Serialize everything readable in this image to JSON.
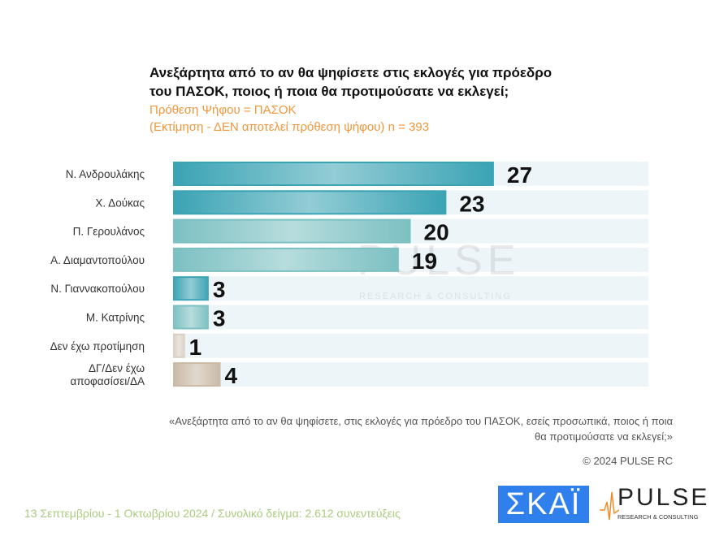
{
  "header": {
    "title": "Ανεξάρτητα από το αν θα ψηφίσετε στις εκλογές για πρόεδρο του ΠΑΣΟΚ, ποιος ή ποια θα προτιμούσατε να εκλεγεί;",
    "subtitle1": "Πρόθεση Ψήφου = ΠΑΣΟΚ",
    "subtitle2": "(Εκτίμηση - ΔΕΝ αποτελεί πρόθεση ψήφου)   n = 393"
  },
  "chart_data": {
    "type": "bar",
    "orientation": "horizontal",
    "categories": [
      "Ν. Ανδρουλάκης",
      "Χ. Δούκας",
      "Π. Γερουλάνος",
      "Α. Διαμαντοπούλου",
      "Ν. Γιαννακοπούλου",
      "Μ. Κατρίνης",
      "Δεν έχω προτίμηση",
      "ΔΓ/Δεν έχω αποφασίσει/ΔΑ"
    ],
    "values": [
      27,
      23,
      20,
      19,
      3,
      3,
      1,
      4
    ],
    "xlim": [
      0,
      40
    ],
    "colors": [
      "#3aa3b4",
      "#3aa3b4",
      "#7cc0c2",
      "#7cc0c2",
      "#3aa3b4",
      "#7cc0c2",
      "#d9cfc4",
      "#c9b9a6"
    ],
    "track_color": "#eef5f9"
  },
  "watermark": {
    "name": "PULSE",
    "tagline": "RESEARCH & CONSULTING"
  },
  "note": "«Ανεξάρτητα από το αν θα ψηφίσετε, στις εκλογές για πρόεδρο του ΠΑΣΟΚ, εσείς προσωπικά, ποιος ή ποια θα προτιμούσατε να εκλεγεί;»",
  "copyright": "© 2024 PULSE RC",
  "footer": "13 Σεπτεμβρίου - 1 Οκτωβρίου 2024  /  Συνολικό δείγμα:  2.612 συνεντεύξεις",
  "logos": {
    "skai": "ΣΚΑΪ",
    "pulse": "PULSE",
    "pulse_tagline": "RESEARCH & CONSULTING"
  }
}
